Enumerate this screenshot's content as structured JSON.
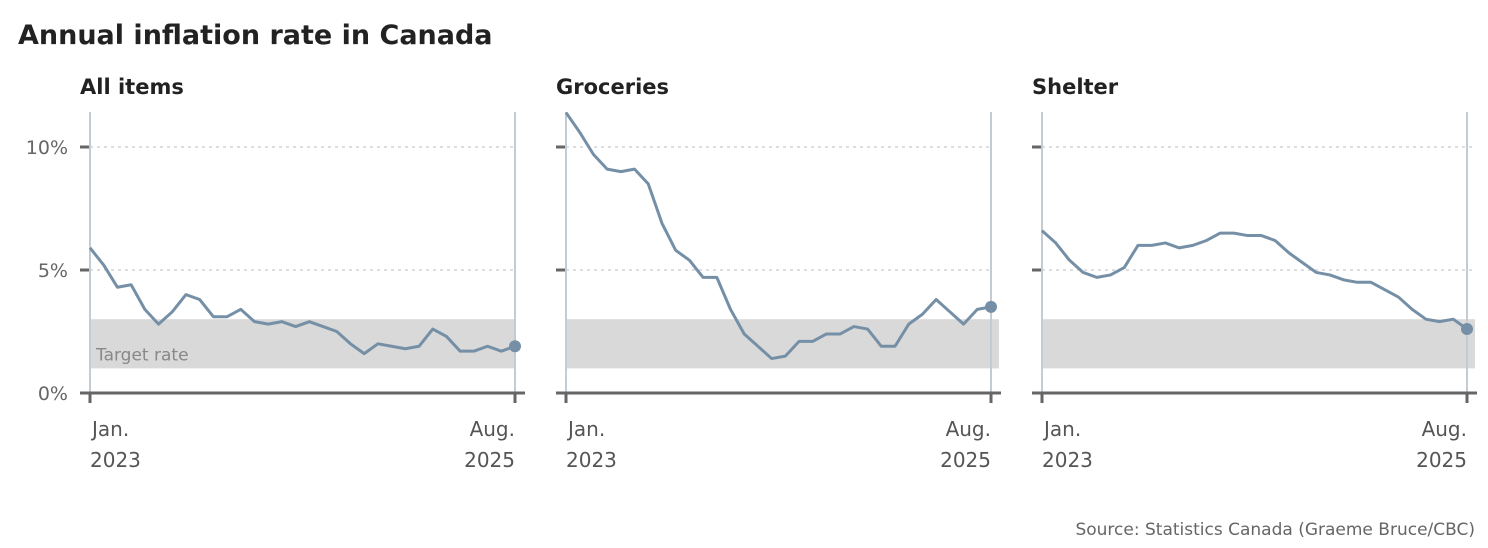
{
  "chart_data": {
    "type": "line",
    "title": "Annual inflation rate in Canada",
    "source": "Source: Statistics Canada (Graeme Bruce/CBC)",
    "ylim": [
      0,
      11.5
    ],
    "yticks": [
      0,
      5,
      10
    ],
    "ytick_labels": [
      "0%",
      "5%",
      "10%"
    ],
    "x_start_label": [
      "Jan.",
      "2023"
    ],
    "x_end_label": [
      "Aug.",
      "2025"
    ],
    "target_band": {
      "label": "Target rate",
      "low": 1,
      "high": 3
    },
    "line_color": "#7590a6",
    "band_color": "#d9d9d9",
    "panels": [
      {
        "name": "All items",
        "values": [
          5.9,
          5.2,
          4.3,
          4.4,
          3.4,
          2.8,
          3.3,
          4.0,
          3.8,
          3.1,
          3.1,
          3.4,
          2.9,
          2.8,
          2.9,
          2.7,
          2.9,
          2.7,
          2.5,
          2.0,
          1.6,
          2.0,
          1.9,
          1.8,
          1.9,
          2.6,
          2.3,
          1.7,
          1.7,
          1.9,
          1.7,
          1.9
        ]
      },
      {
        "name": "Groceries",
        "values": [
          11.4,
          10.6,
          9.7,
          9.1,
          9.0,
          9.1,
          8.5,
          6.9,
          5.8,
          5.4,
          4.7,
          4.7,
          3.4,
          2.4,
          1.9,
          1.4,
          1.5,
          2.1,
          2.1,
          2.4,
          2.4,
          2.7,
          2.6,
          1.9,
          1.9,
          2.8,
          3.2,
          3.8,
          3.3,
          2.8,
          3.4,
          3.5
        ]
      },
      {
        "name": "Shelter",
        "values": [
          6.6,
          6.1,
          5.4,
          4.9,
          4.7,
          4.8,
          5.1,
          6.0,
          6.0,
          6.1,
          5.9,
          6.0,
          6.2,
          6.5,
          6.5,
          6.4,
          6.4,
          6.2,
          5.7,
          5.3,
          4.9,
          4.8,
          4.6,
          4.5,
          4.5,
          4.2,
          3.9,
          3.4,
          3.0,
          2.9,
          3.0,
          2.6
        ]
      }
    ]
  }
}
